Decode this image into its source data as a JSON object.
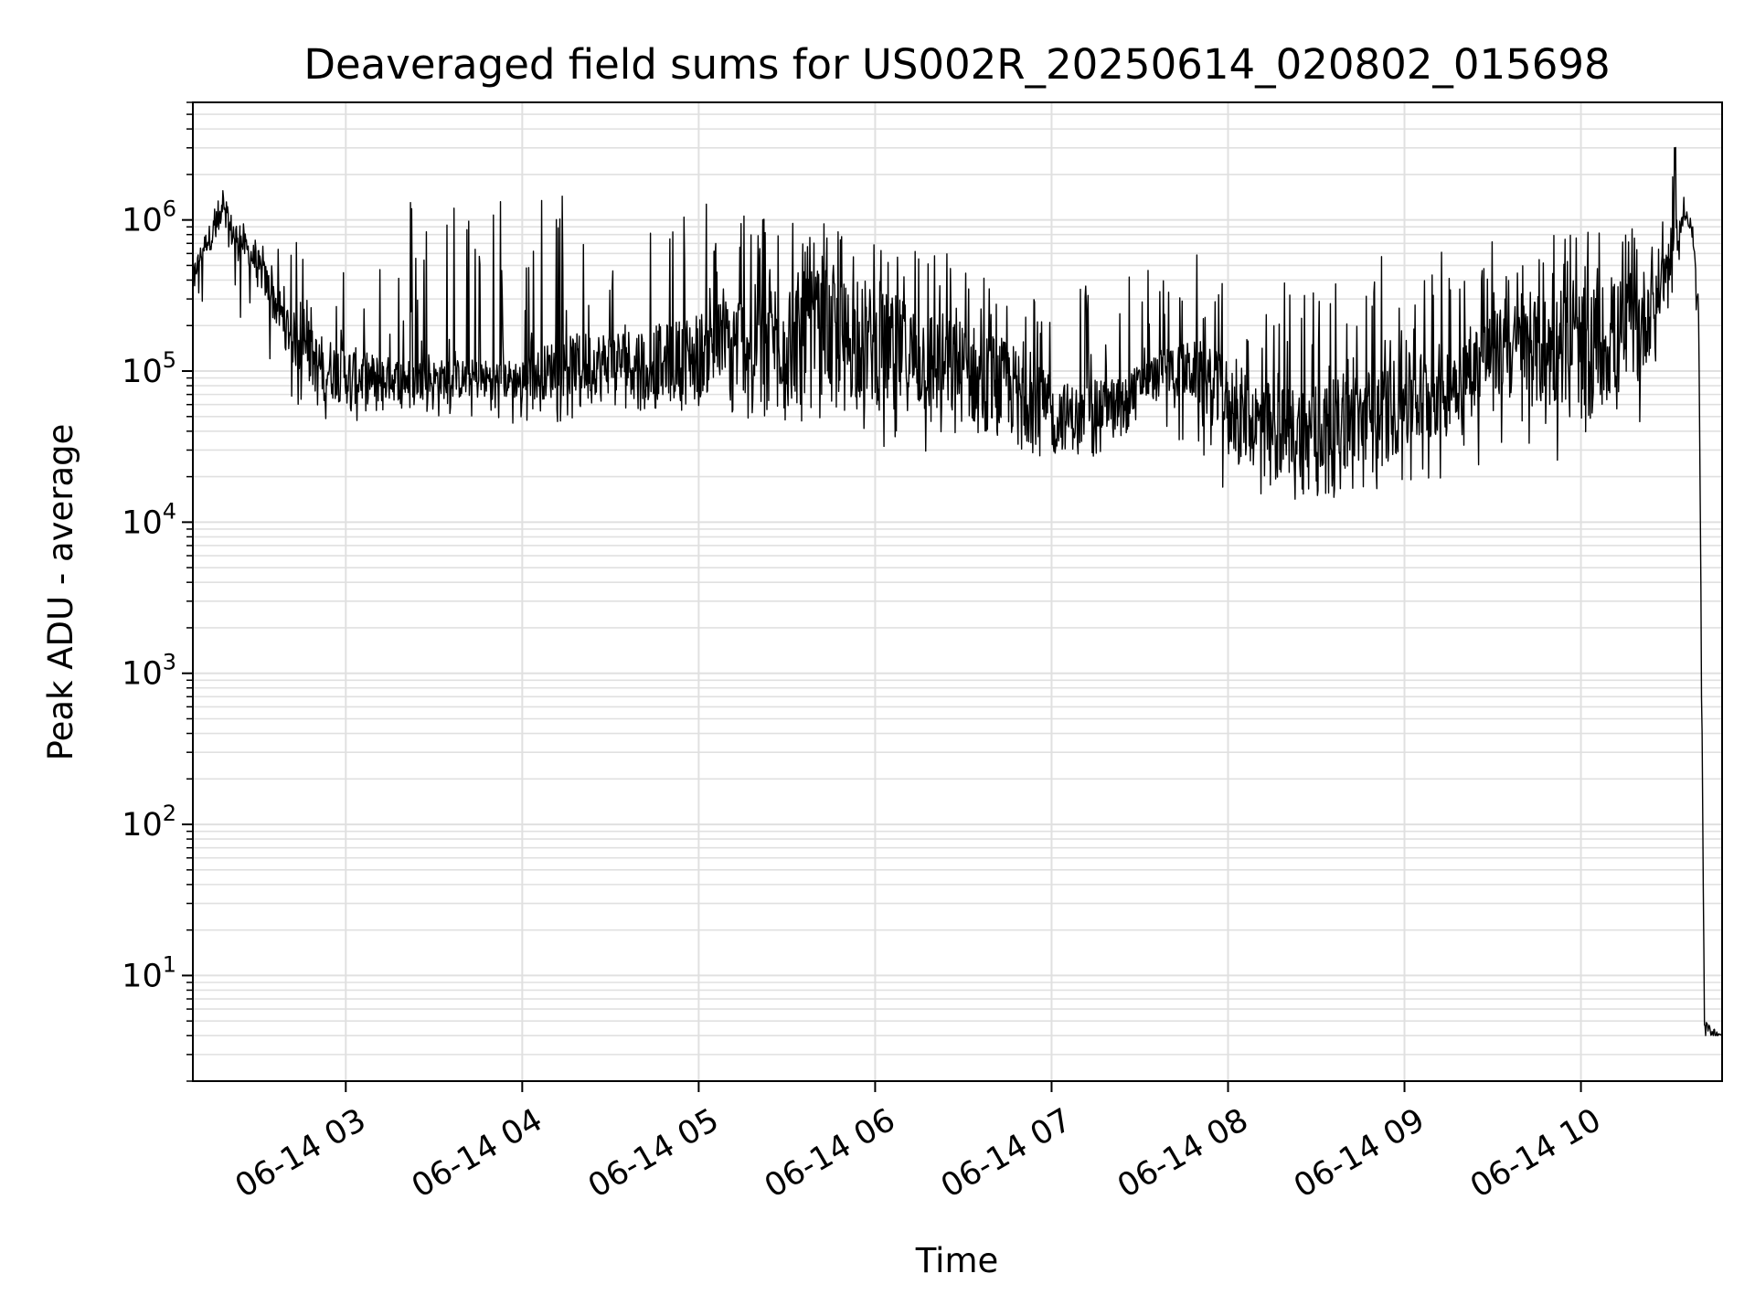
{
  "chart_data": {
    "type": "line",
    "title": "Deaveraged field sums for US002R_20250614_020802_015698",
    "xlabel": "Time",
    "ylabel": "Peak ADU - average",
    "y_scale": "log",
    "ylim": [
      2,
      6000000
    ],
    "xlim": [
      "06-14 02:08",
      "06-14 10:48"
    ],
    "grid": true,
    "grid_minor": true,
    "legend": "none",
    "colors": {
      "line": "#000000",
      "grid": "#e0e0e0",
      "axes": "#000000",
      "background": "#ffffff"
    },
    "x_ticks": [
      {
        "label": "06-14 03",
        "time": "06-14 03:00"
      },
      {
        "label": "06-14 04",
        "time": "06-14 04:00"
      },
      {
        "label": "06-14 05",
        "time": "06-14 05:00"
      },
      {
        "label": "06-14 06",
        "time": "06-14 06:00"
      },
      {
        "label": "06-14 07",
        "time": "06-14 07:00"
      },
      {
        "label": "06-14 08",
        "time": "06-14 08:00"
      },
      {
        "label": "06-14 09",
        "time": "06-14 09:00"
      },
      {
        "label": "06-14 10",
        "time": "06-14 10:00"
      }
    ],
    "y_ticks": [
      {
        "base": "10",
        "exp": "1",
        "value": 10
      },
      {
        "base": "10",
        "exp": "2",
        "value": 100
      },
      {
        "base": "10",
        "exp": "3",
        "value": 1000
      },
      {
        "base": "10",
        "exp": "4",
        "value": 10000
      },
      {
        "base": "10",
        "exp": "5",
        "value": 100000
      },
      {
        "base": "10",
        "exp": "6",
        "value": 1000000
      }
    ],
    "series": [
      {
        "time": [
          "06-14 02:08",
          "06-14 02:12",
          "06-14 02:18",
          "06-14 02:24",
          "06-14 02:30",
          "06-14 02:36",
          "06-14 02:42",
          "06-14 02:50",
          "06-14 03:00",
          "06-14 03:10",
          "06-14 03:20",
          "06-14 03:30",
          "06-14 03:40",
          "06-14 03:50",
          "06-14 04:00",
          "06-14 04:10",
          "06-14 04:20",
          "06-14 04:30",
          "06-14 04:40",
          "06-14 04:50",
          "06-14 05:00",
          "06-14 05:10",
          "06-14 05:20",
          "06-14 05:30",
          "06-14 05:40",
          "06-14 05:50",
          "06-14 06:00",
          "06-14 06:10",
          "06-14 06:20",
          "06-14 06:30",
          "06-14 06:40",
          "06-14 06:50",
          "06-14 07:00",
          "06-14 07:10",
          "06-14 07:20",
          "06-14 07:30",
          "06-14 07:40",
          "06-14 07:50",
          "06-14 08:00",
          "06-14 08:10",
          "06-14 08:20",
          "06-14 08:30",
          "06-14 08:40",
          "06-14 08:50",
          "06-14 09:00",
          "06-14 09:10",
          "06-14 09:20",
          "06-14 09:30",
          "06-14 09:40",
          "06-14 09:50",
          "06-14 10:00",
          "06-14 10:10",
          "06-14 10:20",
          "06-14 10:28",
          "06-14 10:32",
          "06-14 10:36",
          "06-14 10:38",
          "06-14 10:40",
          "06-14 10:42",
          "06-14 10:48"
        ],
        "peak": [
          500000,
          800000,
          1400000,
          900000,
          650000,
          400000,
          250000,
          180000,
          150000,
          130000,
          120000,
          120000,
          120000,
          120000,
          120000,
          160000,
          180000,
          190000,
          200000,
          210000,
          250000,
          320000,
          380000,
          450000,
          460000,
          400000,
          360000,
          300000,
          260000,
          220000,
          180000,
          140000,
          90000,
          80000,
          90000,
          110000,
          150000,
          160000,
          120000,
          90000,
          80000,
          85000,
          90000,
          110000,
          130000,
          150000,
          180000,
          250000,
          300000,
          330000,
          350000,
          400000,
          450000,
          700000,
          1000000,
          1200000,
          900000,
          300000,
          5,
          4
        ],
        "baseline": [
          350000,
          600000,
          700000,
          600000,
          400000,
          200000,
          110000,
          70000,
          60000,
          60000,
          65000,
          65000,
          65000,
          65000,
          65000,
          65000,
          70000,
          70000,
          70000,
          70000,
          70000,
          70000,
          70000,
          70000,
          70000,
          65000,
          60000,
          55000,
          50000,
          45000,
          40000,
          35000,
          30000,
          30000,
          40000,
          60000,
          70000,
          60000,
          30000,
          22000,
          20000,
          20000,
          22000,
          25000,
          28000,
          35000,
          50000,
          70000,
          60000,
          55000,
          60000,
          60000,
          80000,
          250000,
          600000,
          1000000,
          700000,
          200000,
          4,
          4
        ],
        "spike": [
          500000,
          900000,
          1600000,
          1000000,
          800000,
          600000,
          900000,
          700000,
          600000,
          1500000,
          1600000,
          1700000,
          1600000,
          1600000,
          1600000,
          1700000,
          1500000,
          1400000,
          1300000,
          1300000,
          1300000,
          1300000,
          1200000,
          1100000,
          1000000,
          900000,
          800000,
          700000,
          700000,
          600000,
          500000,
          500000,
          300000,
          400000,
          400000,
          500000,
          700000,
          600000,
          600000,
          400000,
          400000,
          400000,
          500000,
          600000,
          600000,
          700000,
          700000,
          800000,
          900000,
          900000,
          900000,
          800000,
          900000,
          1300000,
          3200000,
          1300000,
          900000,
          300000,
          5,
          4
        ],
        "dip": [
          300000,
          200000,
          200000,
          200000,
          150000,
          100000,
          60000,
          50000,
          45000,
          45000,
          50000,
          50000,
          50000,
          50000,
          40000,
          45000,
          50000,
          50000,
          55000,
          55000,
          55000,
          50000,
          45000,
          45000,
          45000,
          40000,
          30000,
          28000,
          28000,
          30000,
          30000,
          25000,
          25000,
          25000,
          30000,
          45000,
          40000,
          25000,
          15000,
          14000,
          13000,
          14000,
          15000,
          16000,
          18000,
          18000,
          20000,
          25000,
          30000,
          25000,
          28000,
          30000,
          40000,
          150000,
          400000,
          900000,
          600000,
          100000,
          4,
          4
        ]
      }
    ]
  }
}
